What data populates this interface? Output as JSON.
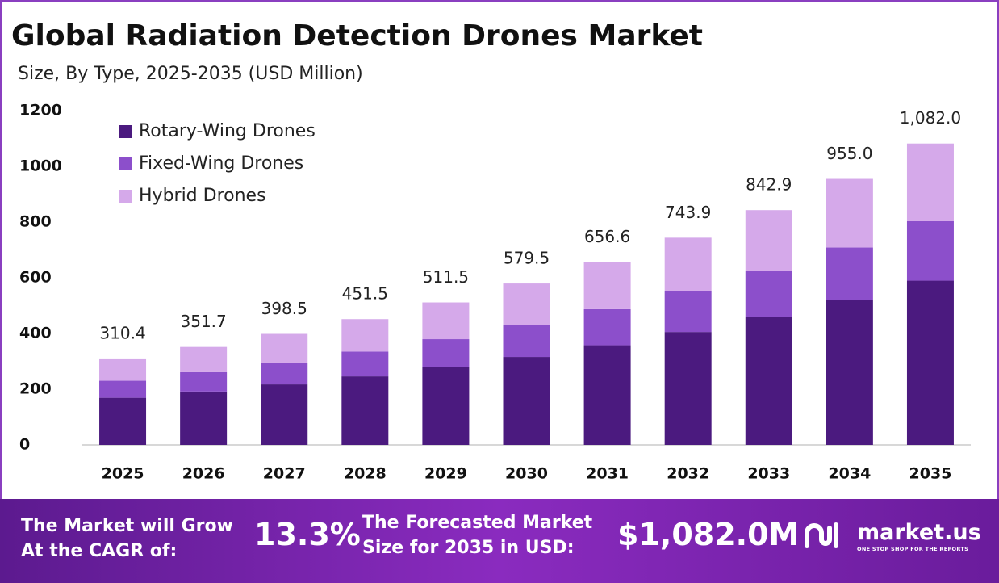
{
  "chart_data": {
    "type": "stacked-bar",
    "title": "Global Radiation Detection Drones Market",
    "subtitle": "Size, By Type, 2025-2035 (USD Million)",
    "categories": [
      "2025",
      "2026",
      "2027",
      "2028",
      "2029",
      "2030",
      "2031",
      "2032",
      "2033",
      "2034",
      "2035"
    ],
    "series": [
      {
        "name": "Rotary-Wing Drones",
        "color": "#4b1a7f",
        "values": [
          169.2,
          191.7,
          217.2,
          246.1,
          278.8,
          315.8,
          357.8,
          405.4,
          459.4,
          520.5,
          589.7
        ]
      },
      {
        "name": "Fixed-Wing Drones",
        "color": "#8c4fcb",
        "values": [
          61.1,
          69.3,
          78.5,
          88.9,
          100.8,
          114.2,
          129.4,
          146.5,
          166.1,
          188.1,
          213.2
        ]
      },
      {
        "name": "Hybrid Drones",
        "color": "#d5a9ea",
        "values": [
          80.1,
          90.7,
          102.8,
          116.5,
          131.9,
          149.5,
          169.4,
          192.0,
          217.4,
          246.4,
          279.1
        ]
      }
    ],
    "totals": [
      310.4,
      351.7,
      398.5,
      451.5,
      511.5,
      579.5,
      656.6,
      743.9,
      842.9,
      955.0,
      1082.0
    ],
    "total_labels": [
      "310.4",
      "351.7",
      "398.5",
      "451.5",
      "511.5",
      "579.5",
      "656.6",
      "743.9",
      "842.9",
      "955.0",
      "1,082.0"
    ],
    "ylim": [
      0,
      1200
    ],
    "yticks": [
      0,
      200,
      400,
      600,
      800,
      1000,
      1200
    ],
    "legend": "top-left"
  },
  "footer": {
    "cagr_text": [
      "The Market will Grow",
      "At the CAGR of:"
    ],
    "cagr": "13.3%",
    "forecast_text": [
      "The Forecasted Market",
      "Size for 2035 in USD:"
    ],
    "forecast": "$1,082.0M",
    "brand": "market.us",
    "tagline": "ONE STOP SHOP FOR THE REPORTS"
  }
}
